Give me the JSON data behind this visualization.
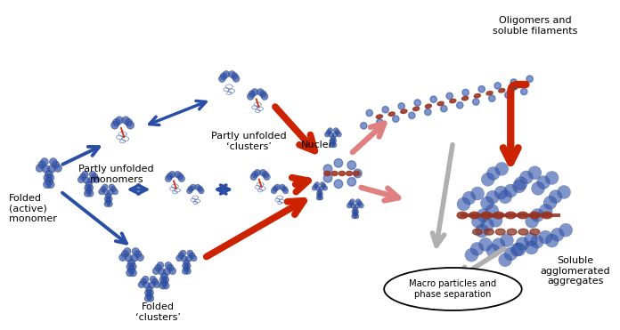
{
  "bg_color": "#ffffff",
  "labels": {
    "partly_unfolded_monomers": "Partly unfolded\nmonomers",
    "partly_unfolded_clusters": "Partly unfolded\n‘clusters’",
    "folded_active_monomer": "Folded\n(active)\nmonomer",
    "folded_clusters": "Folded\n‘clusters’",
    "nuclei": "Nuclei",
    "oligomers_filaments": "Oligomers and\nsoluble filaments",
    "soluble_aggregated": "Soluble\nagglomerated\naggregates",
    "macro_particles": "Macro particles and\nphase separation"
  },
  "arrow_blue": "#2a4ea6",
  "arrow_red": "#cc2200",
  "arrow_pink": "#e08080",
  "arrow_gray": "#b0b0b0",
  "mol_blue": "#3355aa",
  "mol_blue_dark": "#1a2d6e",
  "mol_red": "#cc2200",
  "label_fs": 8
}
